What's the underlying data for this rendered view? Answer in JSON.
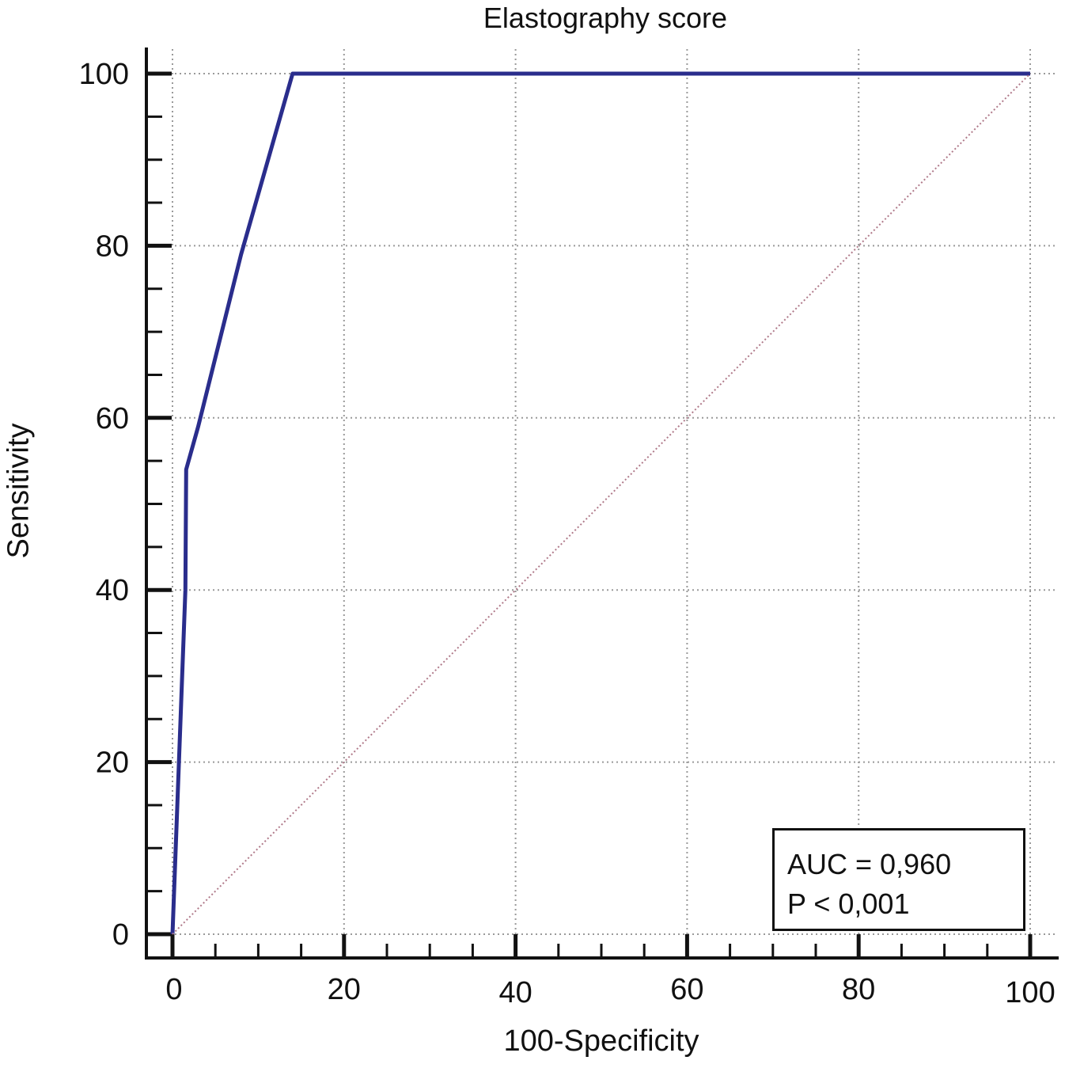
{
  "chart_data": {
    "type": "line",
    "title": "Elastography score",
    "xlabel": "100-Specificity",
    "ylabel": "Sensitivity",
    "xlim": [
      0,
      100
    ],
    "ylim": [
      0,
      100
    ],
    "xticks": [
      0,
      20,
      40,
      60,
      80,
      100
    ],
    "yticks": [
      0,
      20,
      40,
      60,
      80,
      100
    ],
    "grid": true,
    "series": [
      {
        "color": "#2a2d8c",
        "points": [
          [
            0,
            0
          ],
          [
            1.5,
            40
          ],
          [
            1.6,
            54
          ],
          [
            3,
            59
          ],
          [
            8,
            79
          ],
          [
            14,
            100
          ],
          [
            100,
            100
          ]
        ]
      },
      {
        "color": "#b07a8a",
        "style": "dotted",
        "points": [
          [
            0,
            0
          ],
          [
            100,
            100
          ]
        ]
      }
    ],
    "annotations": [
      "AUC = 0,960",
      "P < 0,001"
    ]
  }
}
